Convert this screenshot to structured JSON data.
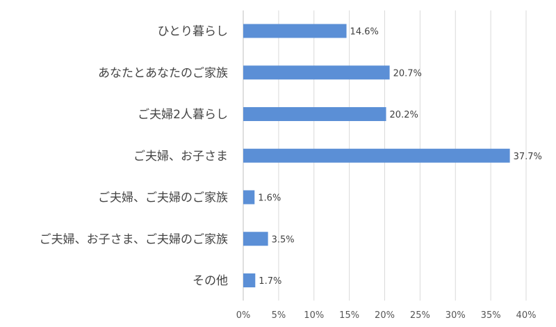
{
  "chart_data": {
    "type": "bar",
    "orientation": "horizontal",
    "categories": [
      "ひとり暮らし",
      "あなたとあなたのご家族",
      "ご夫婦2人暮らし",
      "ご夫婦、お子さま",
      "ご夫婦、ご夫婦のご家族",
      "ご夫婦、お子さま、ご夫婦のご家族",
      "その他"
    ],
    "values": [
      14.6,
      20.7,
      20.2,
      37.7,
      1.6,
      3.5,
      1.7
    ],
    "value_labels": [
      "14.6%",
      "20.7%",
      "20.2%",
      "37.7%",
      "1.6%",
      "3.5%",
      "1.7%"
    ],
    "xlim": [
      0,
      40
    ],
    "x_ticks": [
      0,
      5,
      10,
      15,
      20,
      25,
      30,
      35,
      40
    ],
    "x_tick_labels": [
      "0%",
      "5%",
      "10%",
      "15%",
      "20%",
      "25%",
      "30%",
      "35%",
      "40%"
    ],
    "grid": true,
    "legend": "none",
    "bar_color": "#5b8fd6",
    "gridline_color": "#d9d9d9"
  }
}
